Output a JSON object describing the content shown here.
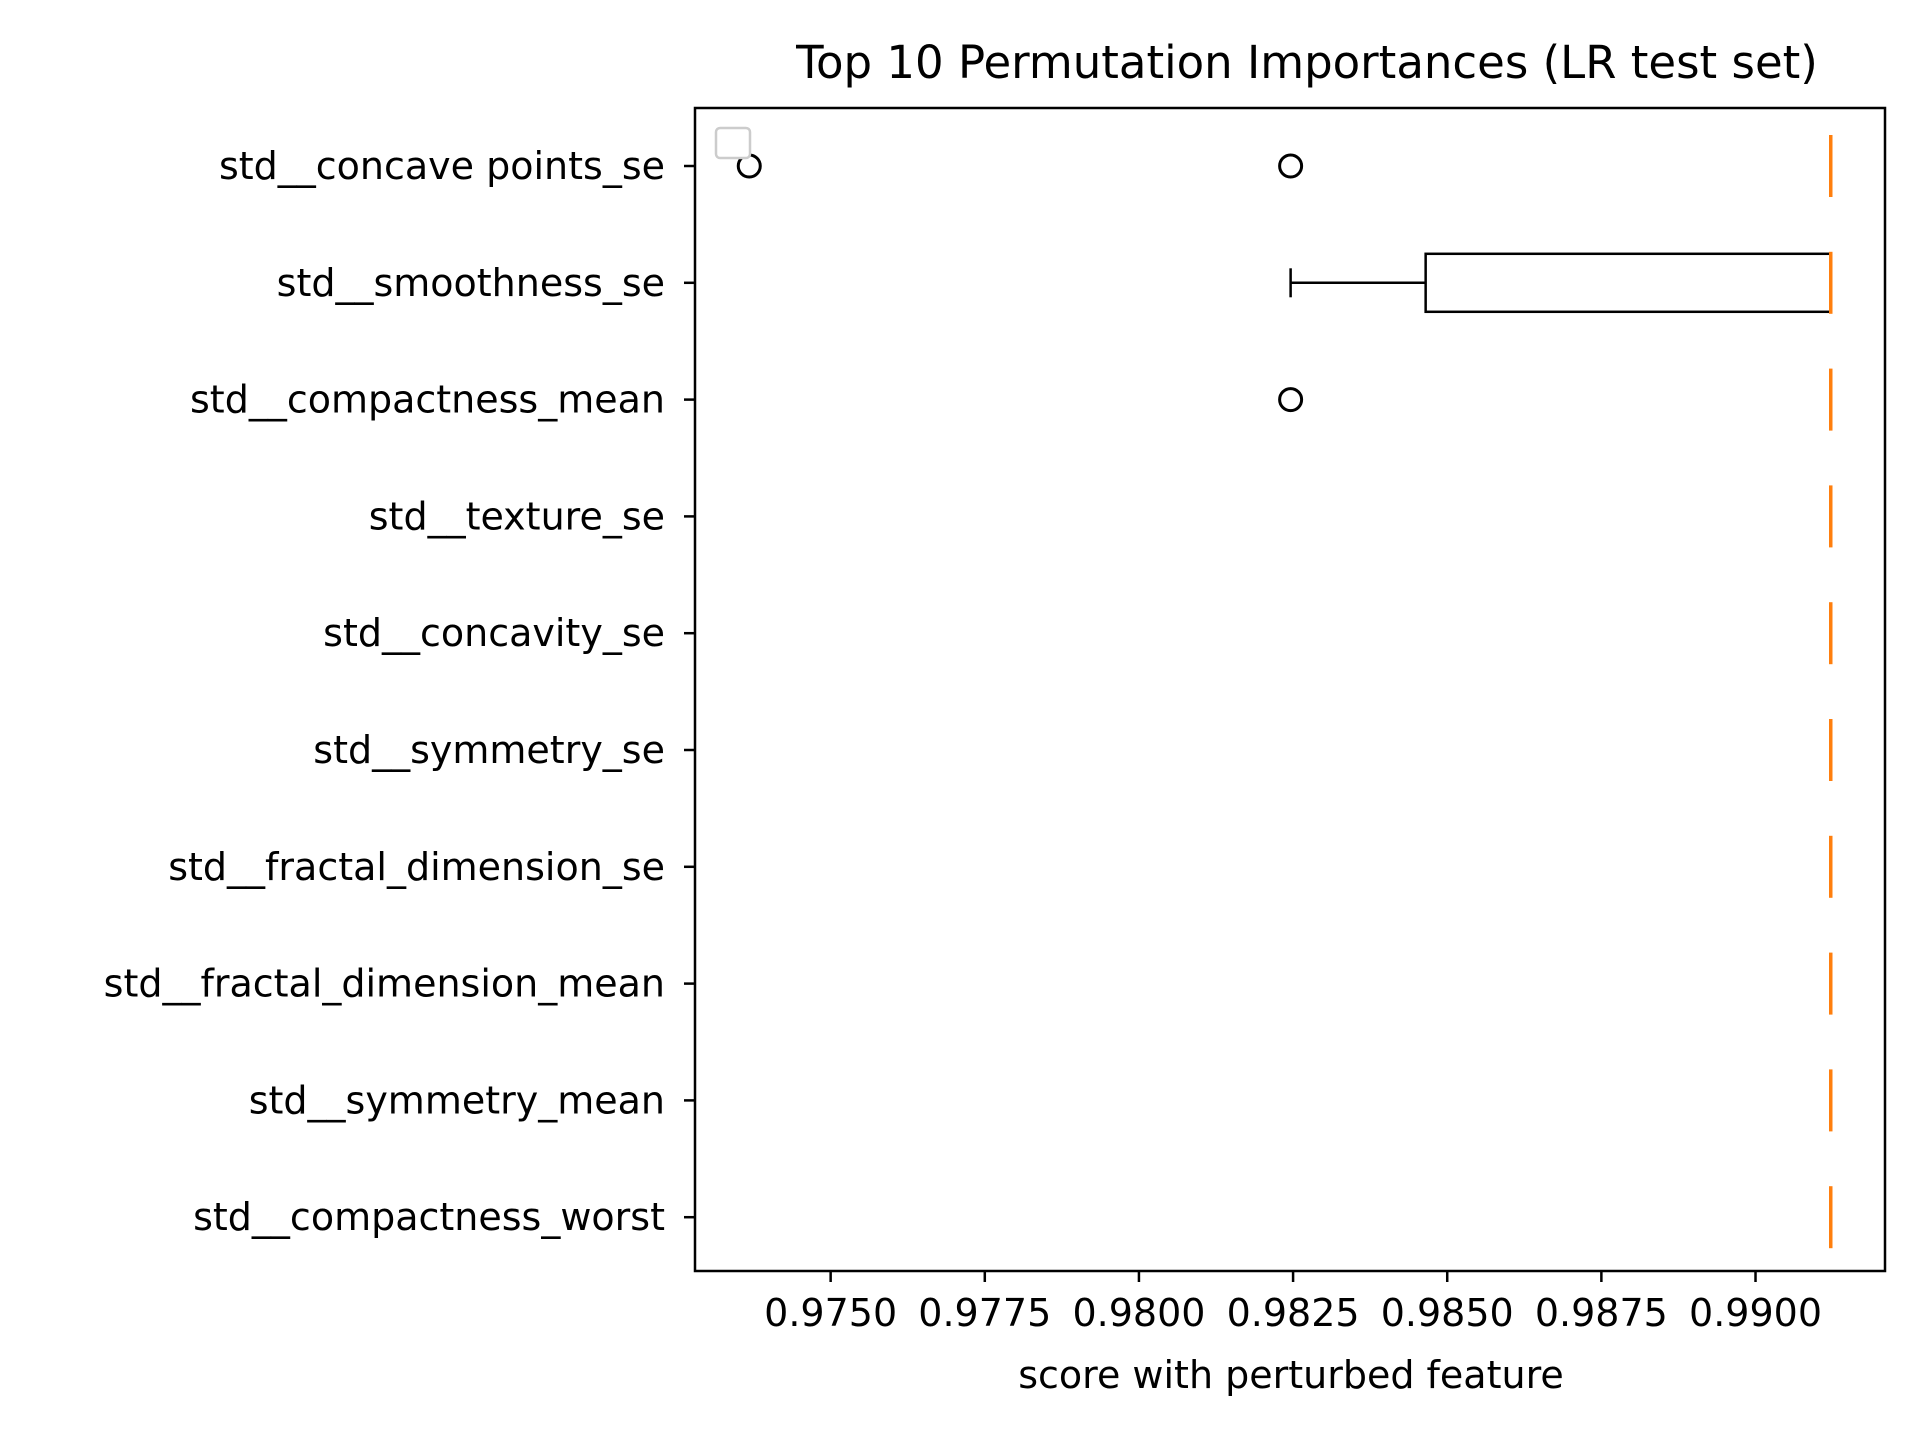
{
  "chart_data": {
    "type": "boxplot",
    "orientation": "horizontal",
    "title": "Top 10 Permutation Importances (LR test set)",
    "xlabel": "score with perturbed feature",
    "ylabel": "",
    "xlim": [
      0.9728,
      0.9921
    ],
    "xticks": [
      0.975,
      0.9775,
      0.98,
      0.9825,
      0.985,
      0.9875,
      0.99
    ],
    "xtick_labels": [
      "0.9750",
      "0.9775",
      "0.9800",
      "0.9825",
      "0.9850",
      "0.9875",
      "0.9900"
    ],
    "categories": [
      "std__concave points_se",
      "std__smoothness_se",
      "std__compactness_mean",
      "std__texture_se",
      "std__concavity_se",
      "std__symmetry_se",
      "std__fractal_dimension_se",
      "std__fractal_dimension_mean",
      "std__symmetry_mean",
      "std__compactness_worst"
    ],
    "boxes": [
      {
        "whislo": 0.99122,
        "q1": 0.99122,
        "med": 0.99122,
        "q3": 0.99122,
        "whishi": 0.99122,
        "fliers": [
          0.97368,
          0.98246
        ]
      },
      {
        "whislo": 0.98246,
        "q1": 0.98465,
        "med": 0.99122,
        "q3": 0.99122,
        "whishi": 0.99122,
        "fliers": []
      },
      {
        "whislo": 0.99122,
        "q1": 0.99122,
        "med": 0.99122,
        "q3": 0.99122,
        "whishi": 0.99122,
        "fliers": [
          0.98246
        ]
      },
      {
        "whislo": 0.99122,
        "q1": 0.99122,
        "med": 0.99122,
        "q3": 0.99122,
        "whishi": 0.99122,
        "fliers": []
      },
      {
        "whislo": 0.99122,
        "q1": 0.99122,
        "med": 0.99122,
        "q3": 0.99122,
        "whishi": 0.99122,
        "fliers": []
      },
      {
        "whislo": 0.99122,
        "q1": 0.99122,
        "med": 0.99122,
        "q3": 0.99122,
        "whishi": 0.99122,
        "fliers": []
      },
      {
        "whislo": 0.99122,
        "q1": 0.99122,
        "med": 0.99122,
        "q3": 0.99122,
        "whishi": 0.99122,
        "fliers": []
      },
      {
        "whislo": 0.99122,
        "q1": 0.99122,
        "med": 0.99122,
        "q3": 0.99122,
        "whishi": 0.99122,
        "fliers": []
      },
      {
        "whislo": 0.99122,
        "q1": 0.99122,
        "med": 0.99122,
        "q3": 0.99122,
        "whishi": 0.99122,
        "fliers": []
      },
      {
        "whislo": 0.99122,
        "q1": 0.99122,
        "med": 0.99122,
        "q3": 0.99122,
        "whishi": 0.99122,
        "fliers": []
      }
    ],
    "median_color": "#ff7f0e",
    "box_color": "#000000",
    "legend": {
      "position": "top-left",
      "entries": []
    },
    "grid": false
  }
}
